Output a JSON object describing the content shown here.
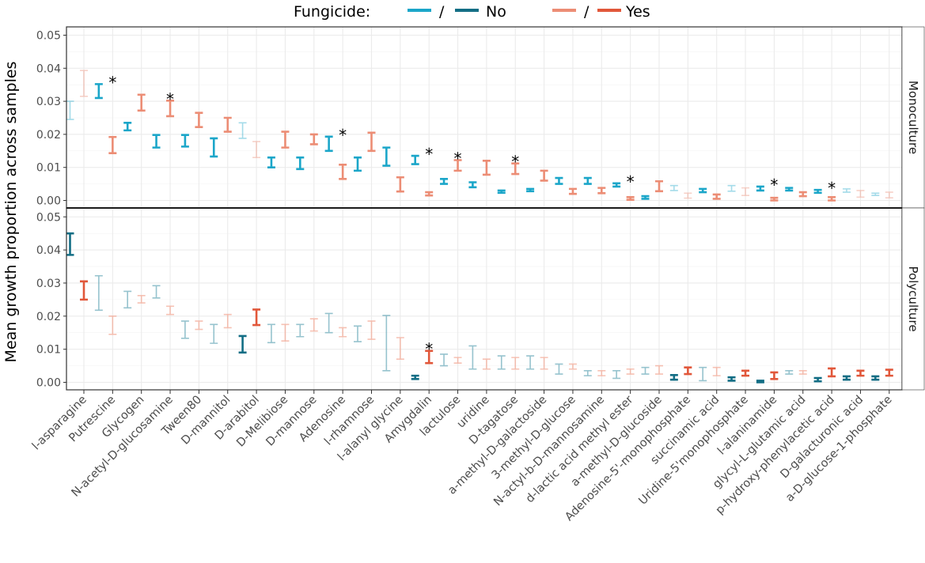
{
  "chart_data": {
    "type": "errorbar",
    "ylabel": "Mean growth proportion across samples",
    "ylim": [
      -0.002,
      0.052
    ],
    "yticks": [
      "0.00",
      "0.01",
      "0.02",
      "0.03",
      "0.04",
      "0.05"
    ],
    "ytick_values": [
      0,
      0.01,
      0.02,
      0.03,
      0.04,
      0.05
    ],
    "legend": {
      "title": "Fungicide:",
      "separator": "/",
      "entries": [
        "No",
        "Yes"
      ]
    },
    "colors": {
      "no_light": "#1ba6c9",
      "no_dark": "#136e85",
      "yes_light": "#ec8d75",
      "yes_dark": "#e1573a"
    },
    "categories": [
      "l-asparagine",
      "Putrescine",
      "Glycogen",
      "N-acetyl-D-glucosamine",
      "Tween80",
      "D-mannitol",
      "D-arabitol",
      "D-Melibiose",
      "D-mannose",
      "Adenosine",
      "l-rhamnose",
      "l-alanyl glycine",
      "Amygdalin",
      "lactulose",
      "uridine",
      "D-tagatose",
      "a-methyl-D-galactoside",
      "3-methyl-D-glucose",
      "N-actyl-b-D-mannosamine",
      "d-lactic acid methyl ester",
      "a-methyl-D-glucoside",
      "Adenosine-5'-monophosphate",
      "succinamic acid",
      "Uridine-5'monophosphate",
      "l-alaninamide",
      "glycyl-L-glutamic acid",
      "p-hydroxy-phenylacetic acid",
      "D-galacturonic acid",
      "a-D-glucose-1-phosphate"
    ],
    "panels": [
      {
        "label": "Monoculture",
        "significant_categories": [
          "Putrescine",
          "N-acetyl-D-glucosamine",
          "Adenosine",
          "Amygdalin",
          "lactulose",
          "D-tagatose",
          "d-lactic acid methyl ester",
          "l-alaninamide",
          "p-hydroxy-phenylacetic acid"
        ],
        "series": [
          {
            "name": "No",
            "low": [
              0.0245,
              0.031,
              0.0212,
              0.016,
              0.0163,
              0.0133,
              0.0188,
              0.01,
              0.0095,
              0.015,
              0.009,
              0.0105,
              0.011,
              0.005,
              0.004,
              0.0023,
              0.0028,
              0.005,
              0.005,
              0.0042,
              0.0005,
              0.003,
              0.0025,
              0.0028,
              0.003,
              0.003,
              0.0023,
              0.0025,
              0.0015
            ],
            "high": [
              0.03,
              0.0352,
              0.0235,
              0.0198,
              0.0198,
              0.0188,
              0.0235,
              0.013,
              0.013,
              0.0193,
              0.013,
              0.016,
              0.0135,
              0.0065,
              0.0055,
              0.003,
              0.0035,
              0.0068,
              0.0068,
              0.0052,
              0.0013,
              0.0045,
              0.0035,
              0.0045,
              0.0042,
              0.0038,
              0.0032,
              0.0035,
              0.0022
            ],
            "strong": [
              false,
              true,
              true,
              true,
              true,
              true,
              false,
              true,
              true,
              true,
              true,
              true,
              true,
              true,
              true,
              true,
              true,
              true,
              true,
              true,
              true,
              false,
              true,
              false,
              true,
              true,
              true,
              false,
              false
            ]
          },
          {
            "name": "Yes",
            "low": [
              0.0315,
              0.0143,
              0.0272,
              0.0255,
              0.0222,
              0.0208,
              0.013,
              0.016,
              0.017,
              0.0065,
              0.015,
              0.0027,
              0.0015,
              0.009,
              0.0078,
              0.008,
              0.006,
              0.002,
              0.0022,
              0.0002,
              0.0028,
              0.0007,
              0.0005,
              0.0015,
              0.0,
              0.0013,
              0.0,
              0.001,
              0.0008
            ],
            "high": [
              0.0393,
              0.0192,
              0.032,
              0.0302,
              0.0265,
              0.025,
              0.0178,
              0.0208,
              0.02,
              0.0108,
              0.0205,
              0.007,
              0.0025,
              0.0122,
              0.012,
              0.0112,
              0.009,
              0.0035,
              0.0038,
              0.001,
              0.0058,
              0.0022,
              0.0018,
              0.0038,
              0.0008,
              0.0025,
              0.001,
              0.003,
              0.0025
            ],
            "strong": [
              false,
              true,
              true,
              true,
              true,
              true,
              false,
              true,
              true,
              true,
              true,
              true,
              true,
              true,
              true,
              true,
              true,
              true,
              true,
              true,
              true,
              false,
              true,
              false,
              true,
              true,
              true,
              false,
              false
            ]
          }
        ]
      },
      {
        "label": "Polyculture",
        "significant_categories": [
          "Amygdalin"
        ],
        "series": [
          {
            "name": "No",
            "low": [
              0.0385,
              0.0218,
              0.0225,
              0.0255,
              0.0133,
              0.0118,
              0.009,
              0.012,
              0.0138,
              0.015,
              0.0123,
              0.0035,
              0.001,
              0.005,
              0.004,
              0.004,
              0.004,
              0.0025,
              0.002,
              0.0012,
              0.0025,
              0.0008,
              0.0005,
              0.0005,
              0.0,
              0.0025,
              0.0003,
              0.0008,
              0.0008
            ],
            "high": [
              0.045,
              0.0322,
              0.0275,
              0.0292,
              0.0185,
              0.0175,
              0.014,
              0.0175,
              0.0175,
              0.0208,
              0.017,
              0.0202,
              0.002,
              0.0085,
              0.011,
              0.008,
              0.008,
              0.0055,
              0.0035,
              0.0035,
              0.0045,
              0.0022,
              0.0045,
              0.0015,
              0.0005,
              0.0035,
              0.0013,
              0.0018,
              0.0018
            ],
            "strong": [
              true,
              false,
              false,
              false,
              false,
              false,
              true,
              false,
              false,
              false,
              false,
              false,
              true,
              false,
              false,
              false,
              false,
              false,
              false,
              false,
              false,
              true,
              false,
              true,
              true,
              false,
              true,
              true,
              true
            ]
          },
          {
            "name": "Yes",
            "low": [
              0.025,
              0.0145,
              0.024,
              0.0205,
              0.016,
              0.0165,
              0.0173,
              0.0125,
              0.0155,
              0.0138,
              0.013,
              0.007,
              0.0058,
              0.0058,
              0.004,
              0.004,
              0.004,
              0.004,
              0.002,
              0.0025,
              0.0025,
              0.0025,
              0.002,
              0.002,
              0.001,
              0.0025,
              0.0018,
              0.002,
              0.002
            ],
            "high": [
              0.0305,
              0.02,
              0.0262,
              0.023,
              0.0185,
              0.0205,
              0.022,
              0.0175,
              0.0192,
              0.0165,
              0.0185,
              0.0135,
              0.0095,
              0.0075,
              0.007,
              0.0075,
              0.0075,
              0.0055,
              0.0035,
              0.004,
              0.005,
              0.0045,
              0.0045,
              0.0035,
              0.003,
              0.0035,
              0.0042,
              0.0035,
              0.0038
            ],
            "strong": [
              true,
              false,
              false,
              false,
              false,
              false,
              true,
              false,
              false,
              false,
              false,
              false,
              true,
              false,
              false,
              false,
              false,
              false,
              false,
              false,
              false,
              true,
              false,
              true,
              true,
              false,
              true,
              true,
              true
            ]
          }
        ]
      }
    ]
  }
}
